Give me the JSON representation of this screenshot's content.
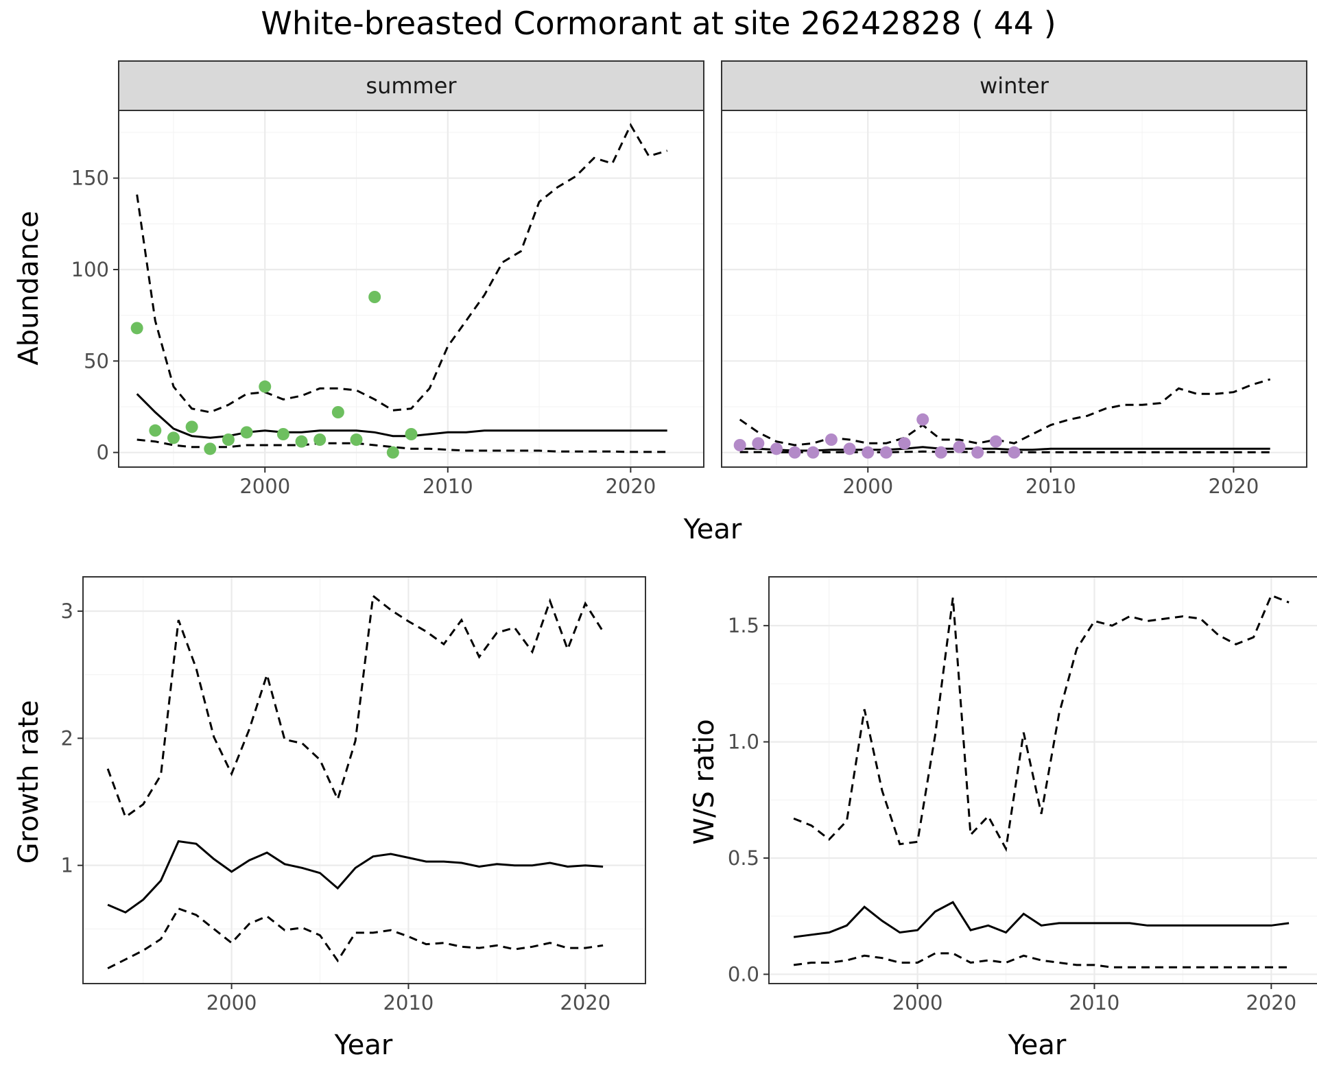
{
  "title": "White-breasted Cormorant at site 26242828 ( 44 )",
  "colors": {
    "summer_points": "#6dbf5f",
    "winter_points": "#b38ac8",
    "lines": "#000000"
  },
  "chart_data": [
    {
      "id": "abundance_summer",
      "type": "line",
      "facet": "summer",
      "xlabel": "Year",
      "ylabel": "Abundance",
      "xlim": [
        1992,
        2024
      ],
      "ylim": [
        -8,
        187
      ],
      "x_ticks": [
        2000,
        2010,
        2020
      ],
      "y_ticks": [
        0,
        50,
        100,
        150
      ],
      "points": {
        "x": [
          1993,
          1994,
          1995,
          1996,
          1997,
          1998,
          1999,
          2000,
          2001,
          2002,
          2003,
          2004,
          2005,
          2006,
          2007,
          2008
        ],
        "y": [
          68,
          12,
          8,
          14,
          2,
          7,
          11,
          36,
          10,
          6,
          7,
          22,
          7,
          85,
          0,
          10
        ]
      },
      "series": [
        {
          "x": [
            1993,
            1994,
            1995,
            1996,
            1997,
            1998,
            1999,
            2000,
            2001,
            2002,
            2003,
            2004,
            2005,
            2006,
            2007,
            2008,
            2009,
            2010,
            2011,
            2012,
            2013,
            2014,
            2015,
            2016,
            2017,
            2018,
            2019,
            2020,
            2021,
            2022
          ],
          "values": [
            32,
            22,
            13,
            9,
            8,
            9,
            11,
            12,
            11,
            11,
            12,
            12,
            12,
            11,
            9,
            9,
            10,
            11,
            11,
            12,
            12,
            12,
            12,
            12,
            12,
            12,
            12,
            12,
            12,
            12
          ]
        },
        {
          "x": [
            1993,
            1994,
            1995,
            1996,
            1997,
            1998,
            1999,
            2000,
            2001,
            2002,
            2003,
            2004,
            2005,
            2006,
            2007,
            2008,
            2009,
            2010,
            2011,
            2012,
            2013,
            2014,
            2015,
            2016,
            2017,
            2018,
            2019,
            2020,
            2021,
            2022
          ],
          "values": [
            141,
            72,
            36,
            24,
            22,
            26,
            32,
            33,
            29,
            31,
            35,
            35,
            34,
            29,
            23,
            24,
            35,
            58,
            72,
            86,
            104,
            110,
            137,
            145,
            151,
            161,
            158,
            179,
            162,
            165
          ]
        },
        {
          "x": [
            1993,
            1994,
            1995,
            1996,
            1997,
            1998,
            1999,
            2000,
            2001,
            2002,
            2003,
            2004,
            2005,
            2006,
            2007,
            2008,
            2009,
            2010,
            2011,
            2012,
            2013,
            2014,
            2015,
            2016,
            2017,
            2018,
            2019,
            2020,
            2021,
            2022
          ],
          "values": [
            7,
            6,
            4,
            3,
            3,
            3,
            4,
            4,
            4,
            4,
            5,
            5,
            5,
            4,
            3,
            2,
            2,
            1.5,
            1,
            1,
            1,
            1,
            1,
            0.5,
            0.5,
            0.5,
            0.5,
            0.3,
            0.3,
            0.3
          ]
        }
      ]
    },
    {
      "id": "abundance_winter",
      "type": "line",
      "facet": "winter",
      "xlabel": "Year",
      "ylabel": "Abundance",
      "xlim": [
        1992,
        2024
      ],
      "ylim": [
        -8,
        187
      ],
      "x_ticks": [
        2000,
        2010,
        2020
      ],
      "y_ticks": [
        0,
        50,
        100,
        150
      ],
      "points": {
        "x": [
          1993,
          1994,
          1995,
          1996,
          1997,
          1998,
          1999,
          2000,
          2001,
          2002,
          2003,
          2004,
          2005,
          2006,
          2007,
          2008
        ],
        "y": [
          4,
          5,
          2,
          0,
          0,
          7,
          2,
          0,
          0,
          5,
          18,
          0,
          3,
          0,
          6,
          0
        ]
      },
      "series": [
        {
          "x": [
            1993,
            1994,
            1995,
            1996,
            1997,
            1998,
            1999,
            2000,
            2001,
            2002,
            2003,
            2004,
            2005,
            2006,
            2007,
            2008,
            2009,
            2010,
            2011,
            2012,
            2013,
            2014,
            2015,
            2016,
            2017,
            2018,
            2019,
            2020,
            2021,
            2022
          ],
          "values": [
            2,
            2,
            1.5,
            1,
            1,
            1.5,
            1.5,
            1.5,
            1.5,
            2,
            3,
            2,
            2,
            2,
            2,
            1.5,
            1.5,
            2,
            2,
            2,
            2,
            2,
            2,
            2,
            2,
            2,
            2,
            2,
            2,
            2
          ]
        },
        {
          "x": [
            1993,
            1994,
            1995,
            1996,
            1997,
            1998,
            1999,
            2000,
            2001,
            2002,
            2003,
            2004,
            2005,
            2006,
            2007,
            2008,
            2009,
            2010,
            2011,
            2012,
            2013,
            2014,
            2015,
            2016,
            2017,
            2018,
            2019,
            2020,
            2021,
            2022
          ],
          "values": [
            18,
            11,
            6,
            4,
            5,
            8,
            7,
            5,
            5,
            8,
            15,
            7,
            7,
            5,
            7,
            5,
            10,
            15,
            18,
            20,
            24,
            26,
            26,
            27,
            35,
            32,
            32,
            33,
            37,
            40
          ]
        },
        {
          "x": [
            1993,
            1994,
            1995,
            1996,
            1997,
            1998,
            1999,
            2000,
            2001,
            2002,
            2003,
            2004,
            2005,
            2006,
            2007,
            2008,
            2009,
            2010,
            2011,
            2012,
            2013,
            2014,
            2015,
            2016,
            2017,
            2018,
            2019,
            2020,
            2021,
            2022
          ],
          "values": [
            0.2,
            0.2,
            0.1,
            0.1,
            0.1,
            0.1,
            0.2,
            0.1,
            0.1,
            0.3,
            0.5,
            0.3,
            0.3,
            0.2,
            0.2,
            0.1,
            0.1,
            0.1,
            0.1,
            0.1,
            0.1,
            0.1,
            0.1,
            0.1,
            0.1,
            0.1,
            0.1,
            0.1,
            0.1,
            0.1
          ]
        }
      ]
    },
    {
      "id": "growth_rate",
      "type": "line",
      "xlabel": "Year",
      "ylabel": "Growth rate",
      "xlim": [
        1991.6,
        2023.4
      ],
      "ylim": [
        0.07,
        3.27
      ],
      "x_ticks": [
        2000,
        2010,
        2020
      ],
      "y_ticks": [
        1,
        2,
        3
      ],
      "series": [
        {
          "x": [
            1993,
            1994,
            1995,
            1996,
            1997,
            1998,
            1999,
            2000,
            2001,
            2002,
            2003,
            2004,
            2005,
            2006,
            2007,
            2008,
            2009,
            2010,
            2011,
            2012,
            2013,
            2014,
            2015,
            2016,
            2017,
            2018,
            2019,
            2020,
            2021
          ],
          "values": [
            0.69,
            0.63,
            0.73,
            0.88,
            1.19,
            1.17,
            1.05,
            0.95,
            1.04,
            1.1,
            1.01,
            0.98,
            0.94,
            0.82,
            0.98,
            1.07,
            1.09,
            1.06,
            1.03,
            1.03,
            1.02,
            0.99,
            1.01,
            1.0,
            1.0,
            1.02,
            0.99,
            1.0,
            0.99
          ]
        },
        {
          "x": [
            1993,
            1994,
            1995,
            1996,
            1997,
            1998,
            1999,
            2000,
            2001,
            2002,
            2003,
            2004,
            2005,
            2006,
            2007,
            2008,
            2009,
            2010,
            2011,
            2012,
            2013,
            2014,
            2015,
            2016,
            2017,
            2018,
            2019,
            2020,
            2021
          ],
          "values": [
            1.76,
            1.38,
            1.48,
            1.71,
            2.93,
            2.55,
            2.01,
            1.72,
            2.07,
            2.5,
            1.99,
            1.96,
            1.83,
            1.52,
            1.98,
            3.12,
            3.01,
            2.92,
            2.84,
            2.74,
            2.93,
            2.64,
            2.83,
            2.87,
            2.68,
            3.08,
            2.7,
            3.06,
            2.84
          ]
        },
        {
          "x": [
            1993,
            1994,
            1995,
            1996,
            1997,
            1998,
            1999,
            2000,
            2001,
            2002,
            2003,
            2004,
            2005,
            2006,
            2007,
            2008,
            2009,
            2010,
            2011,
            2012,
            2013,
            2014,
            2015,
            2016,
            2017,
            2018,
            2019,
            2020,
            2021
          ],
          "values": [
            0.19,
            0.26,
            0.33,
            0.42,
            0.66,
            0.61,
            0.5,
            0.39,
            0.54,
            0.6,
            0.49,
            0.51,
            0.45,
            0.25,
            0.47,
            0.47,
            0.49,
            0.44,
            0.38,
            0.39,
            0.36,
            0.35,
            0.37,
            0.34,
            0.36,
            0.39,
            0.35,
            0.35,
            0.37
          ]
        }
      ]
    },
    {
      "id": "ws_ratio",
      "type": "line",
      "xlabel": "Year",
      "ylabel": "W/S ratio",
      "xlim": [
        1991.6,
        2023.4
      ],
      "ylim": [
        -0.04,
        1.71
      ],
      "x_ticks": [
        2000,
        2010,
        2020
      ],
      "y_ticks": [
        0.0,
        0.5,
        1.0,
        1.5
      ],
      "y_tick_labels": [
        "0.0",
        "0.5",
        "1.0",
        "1.5"
      ],
      "series": [
        {
          "x": [
            1993,
            1994,
            1995,
            1996,
            1997,
            1998,
            1999,
            2000,
            2001,
            2002,
            2003,
            2004,
            2005,
            2006,
            2007,
            2008,
            2009,
            2010,
            2011,
            2012,
            2013,
            2014,
            2015,
            2016,
            2017,
            2018,
            2019,
            2020,
            2021
          ],
          "values": [
            0.16,
            0.17,
            0.18,
            0.21,
            0.29,
            0.23,
            0.18,
            0.19,
            0.27,
            0.31,
            0.19,
            0.21,
            0.18,
            0.26,
            0.21,
            0.22,
            0.22,
            0.22,
            0.22,
            0.22,
            0.21,
            0.21,
            0.21,
            0.21,
            0.21,
            0.21,
            0.21,
            0.21,
            0.22
          ]
        },
        {
          "x": [
            1993,
            1994,
            1995,
            1996,
            1997,
            1998,
            1999,
            2000,
            2001,
            2002,
            2003,
            2004,
            2005,
            2006,
            2007,
            2008,
            2009,
            2010,
            2011,
            2012,
            2013,
            2014,
            2015,
            2016,
            2017,
            2018,
            2019,
            2020,
            2021
          ],
          "values": [
            0.67,
            0.64,
            0.58,
            0.66,
            1.14,
            0.79,
            0.56,
            0.57,
            1.03,
            1.62,
            0.6,
            0.68,
            0.54,
            1.04,
            0.69,
            1.12,
            1.4,
            1.52,
            1.5,
            1.54,
            1.52,
            1.53,
            1.54,
            1.53,
            1.46,
            1.42,
            1.45,
            1.63,
            1.6
          ]
        },
        {
          "x": [
            1993,
            1994,
            1995,
            1996,
            1997,
            1998,
            1999,
            2000,
            2001,
            2002,
            2003,
            2004,
            2005,
            2006,
            2007,
            2008,
            2009,
            2010,
            2011,
            2012,
            2013,
            2014,
            2015,
            2016,
            2017,
            2018,
            2019,
            2020,
            2021
          ],
          "values": [
            0.04,
            0.05,
            0.05,
            0.06,
            0.08,
            0.07,
            0.05,
            0.05,
            0.09,
            0.09,
            0.05,
            0.06,
            0.05,
            0.08,
            0.06,
            0.05,
            0.04,
            0.04,
            0.03,
            0.03,
            0.03,
            0.03,
            0.03,
            0.03,
            0.03,
            0.03,
            0.03,
            0.03,
            0.03
          ]
        }
      ]
    }
  ],
  "facets": {
    "summer": "summer",
    "winter": "winter"
  },
  "axis_titles": {
    "abundance_x": "Year",
    "abundance_y": "Abundance",
    "growth_x": "Year",
    "growth_y": "Growth rate",
    "ratio_x": "Year",
    "ratio_y": "W/S ratio"
  }
}
